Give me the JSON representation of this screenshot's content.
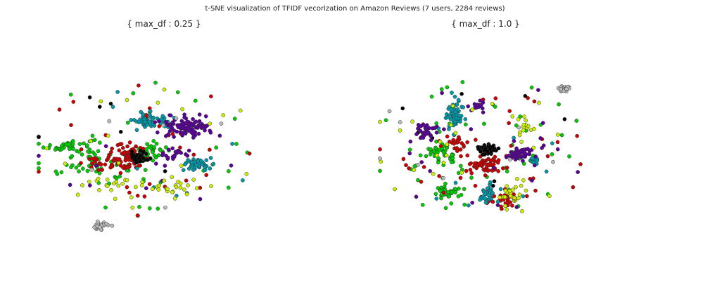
{
  "figure": {
    "suptitle": "t-SNE visualization of TFIDF vecorization on Amazon Reviews (7 users, 2284 reviews)"
  },
  "chart_data": [
    {
      "type": "scatter",
      "title": "{ max_df : 0.25 }",
      "xlabel": "",
      "ylabel": "",
      "grid": false,
      "axes_visible": false,
      "legend": "none",
      "point_count_per_user_approx": 326,
      "series": [
        {
          "color": "#00cc00",
          "clusters": [
            {
              "cx": -3.1,
              "cy": 0.2,
              "sx": 0.9,
              "sy": 0.5,
              "n": 45
            },
            {
              "cx": -2.0,
              "cy": -1.3,
              "sx": 1.4,
              "sy": 1.0,
              "n": 40
            },
            {
              "cx": 0.3,
              "cy": -0.2,
              "sx": 0.7,
              "sy": 0.6,
              "n": 35
            }
          ],
          "scatter": 35
        },
        {
          "color": "#cc0000",
          "clusters": [
            {
              "cx": -0.6,
              "cy": -0.4,
              "sx": 0.6,
              "sy": 0.7,
              "n": 70
            },
            {
              "cx": -1.4,
              "cy": -1.2,
              "sx": 0.9,
              "sy": 0.6,
              "n": 35
            }
          ],
          "scatter": 30
        },
        {
          "color": "#000000",
          "clusters": [
            {
              "cx": -0.1,
              "cy": -0.6,
              "sx": 0.35,
              "sy": 0.35,
              "n": 45
            }
          ],
          "scatter": 6
        },
        {
          "color": "#0099aa",
          "clusters": [
            {
              "cx": 0.4,
              "cy": 2.1,
              "sx": 0.6,
              "sy": 0.4,
              "n": 55
            },
            {
              "cx": 2.3,
              "cy": -1.2,
              "sx": 0.5,
              "sy": 0.4,
              "n": 45
            }
          ],
          "scatter": 10
        },
        {
          "color": "#5a0099",
          "clusters": [
            {
              "cx": 1.9,
              "cy": 1.6,
              "sx": 1.0,
              "sy": 0.6,
              "n": 100
            },
            {
              "cx": 1.4,
              "cy": -0.4,
              "sx": 0.6,
              "sy": 0.5,
              "n": 25
            }
          ],
          "scatter": 12
        },
        {
          "color": "#ccee00",
          "clusters": [
            {
              "cx": 1.5,
              "cy": -3.0,
              "sx": 1.2,
              "sy": 0.5,
              "n": 25
            },
            {
              "cx": -1.3,
              "cy": -2.6,
              "sx": 1.0,
              "sy": 0.5,
              "n": 15
            }
          ],
          "scatter": 22
        },
        {
          "color": "#bbbbbb",
          "clusters": [
            {
              "cx": -1.8,
              "cy": -5.8,
              "sx": 0.3,
              "sy": 0.22,
              "n": 28
            }
          ],
          "scatter": 6
        }
      ]
    },
    {
      "type": "scatter",
      "title": "{ max_df : 1.0 }",
      "xlabel": "",
      "ylabel": "",
      "grid": false,
      "axes_visible": false,
      "legend": "none",
      "series": [
        {
          "color": "#00cc00",
          "clusters": [
            {
              "cx": -1.8,
              "cy": -0.2,
              "sx": 0.5,
              "sy": 0.6,
              "n": 40
            },
            {
              "cx": -1.5,
              "cy": -3.1,
              "sx": 0.6,
              "sy": 0.4,
              "n": 35
            }
          ],
          "scatter": 55
        },
        {
          "color": "#cc0000",
          "clusters": [
            {
              "cx": 0.3,
              "cy": -1.0,
              "sx": 0.7,
              "sy": 0.6,
              "n": 55
            },
            {
              "cx": 1.2,
              "cy": -3.6,
              "sx": 0.8,
              "sy": 0.6,
              "n": 30
            },
            {
              "cx": -1.0,
              "cy": 0.4,
              "sx": 0.6,
              "sy": 0.5,
              "n": 25
            }
          ],
          "scatter": 30
        },
        {
          "color": "#000000",
          "clusters": [
            {
              "cx": 0.4,
              "cy": 0.0,
              "sx": 0.35,
              "sy": 0.35,
              "n": 60
            }
          ],
          "scatter": 8
        },
        {
          "color": "#0099aa",
          "clusters": [
            {
              "cx": -1.1,
              "cy": 2.5,
              "sx": 0.3,
              "sy": 0.9,
              "n": 55
            },
            {
              "cx": 0.4,
              "cy": -3.2,
              "sx": 0.35,
              "sy": 0.6,
              "n": 35
            },
            {
              "cx": 2.6,
              "cy": -0.8,
              "sx": 0.25,
              "sy": 0.2,
              "n": 10
            }
          ],
          "scatter": 10
        },
        {
          "color": "#5a0099",
          "clusters": [
            {
              "cx": -2.6,
              "cy": 1.2,
              "sx": 0.4,
              "sy": 0.4,
              "n": 40
            },
            {
              "cx": 1.9,
              "cy": -0.4,
              "sx": 0.5,
              "sy": 0.4,
              "n": 45
            },
            {
              "cx": 0.0,
              "cy": 3.0,
              "sx": 0.3,
              "sy": 0.3,
              "n": 15
            }
          ],
          "scatter": 25
        },
        {
          "color": "#ccee00",
          "clusters": [
            {
              "cx": 1.5,
              "cy": -3.4,
              "sx": 0.5,
              "sy": 0.6,
              "n": 25
            },
            {
              "cx": 2.2,
              "cy": 1.6,
              "sx": 0.5,
              "sy": 0.8,
              "n": 15
            }
          ],
          "scatter": 25
        },
        {
          "color": "#bbbbbb",
          "clusters": [
            {
              "cx": 4.0,
              "cy": 4.3,
              "sx": 0.2,
              "sy": 0.18,
              "n": 25
            }
          ],
          "scatter": 8
        }
      ]
    }
  ]
}
